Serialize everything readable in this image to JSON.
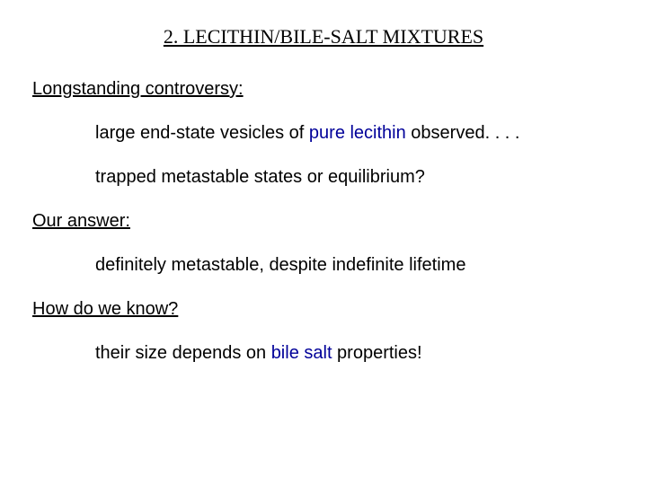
{
  "title": {
    "text": "2. LECITHIN/BILE-SALT MIXTURES",
    "fontsize": 22,
    "weight": "normal"
  },
  "colors": {
    "text": "#000000",
    "accent": "#000099",
    "background": "#ffffff"
  },
  "fontsize_body": 20,
  "sections": {
    "controversy": {
      "heading": "Longstanding controversy:",
      "line1_pre": "large end-state vesicles of ",
      "line1_accent": "pure lecithin",
      "line1_post": " observed. . . .",
      "line2": "trapped metastable states or equilibrium?"
    },
    "answer": {
      "heading": "Our answer:",
      "line1": "definitely metastable, despite indefinite lifetime"
    },
    "how": {
      "heading": "How do we know?",
      "line1_pre": "their size depends on ",
      "line1_accent": "bile salt",
      "line1_post": " properties!"
    }
  }
}
